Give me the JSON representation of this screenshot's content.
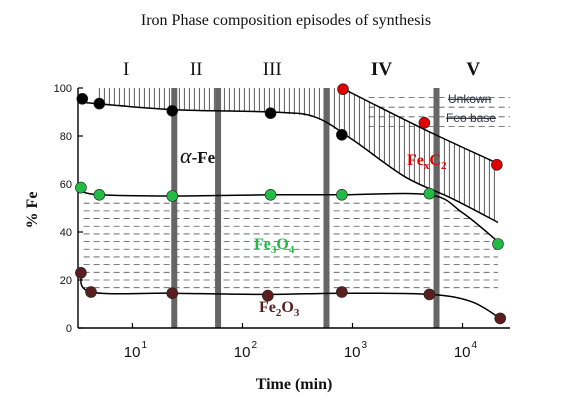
{
  "chart_data": {
    "type": "scatter",
    "title": "Iron Phase composition episodes of synthesis",
    "xlabel": "Time (min)",
    "ylabel": "% Fe",
    "x_scale": "log",
    "xlim": [
      3.2,
      27000
    ],
    "ylim": [
      0,
      100
    ],
    "x_ticks": [
      {
        "value": 10,
        "label": "10",
        "exp": "1"
      },
      {
        "value": 100,
        "label": "10",
        "exp": "2"
      },
      {
        "value": 1000,
        "label": "10",
        "exp": "3"
      },
      {
        "value": 10000,
        "label": "10",
        "exp": "4"
      }
    ],
    "y_ticks": [
      0,
      20,
      40,
      60,
      80,
      100
    ],
    "episodes": [
      {
        "label": "I",
        "start": 3.2,
        "end": 24
      },
      {
        "label": "II",
        "start": 24,
        "end": 60
      },
      {
        "label": "III",
        "start": 60,
        "end": 580
      },
      {
        "label": "IV",
        "start": 580,
        "end": 5800
      },
      {
        "label": "V",
        "start": 5800,
        "end": 27000
      }
    ],
    "dividers": [
      24,
      60,
      580,
      5800
    ],
    "series": [
      {
        "key": "alpha",
        "color": "#000000",
        "points": [
          [
            3.5,
            95.5
          ],
          [
            5,
            93.5
          ],
          [
            23,
            90.5
          ],
          [
            180,
            89.5
          ],
          [
            800,
            80.5
          ]
        ],
        "curve": [
          [
            3.5,
            94
          ],
          [
            23,
            91
          ],
          [
            180,
            90
          ],
          [
            450,
            88
          ],
          [
            1000,
            78.5
          ],
          [
            3000,
            63
          ],
          [
            8000,
            54
          ],
          [
            21000,
            44
          ]
        ]
      },
      {
        "key": "fec",
        "color": "#e00000",
        "points": [
          [
            820,
            99.5
          ],
          [
            4500,
            85.5
          ],
          [
            20500,
            68
          ]
        ],
        "curve": [
          [
            800,
            100
          ],
          [
            2500,
            88.5
          ],
          [
            6000,
            80
          ],
          [
            21000,
            68.5
          ]
        ]
      },
      {
        "key": "fe3o4",
        "color": "#22bb44",
        "points": [
          [
            3.4,
            58.5
          ],
          [
            5,
            55.5
          ],
          [
            23,
            55
          ],
          [
            180,
            55.5
          ],
          [
            800,
            55.5
          ],
          [
            5000,
            56
          ],
          [
            21000,
            35
          ]
        ],
        "curve": [
          [
            3.4,
            57
          ],
          [
            5,
            55.5
          ],
          [
            23,
            55
          ],
          [
            180,
            55.5
          ],
          [
            800,
            55.5
          ],
          [
            5000,
            55.5
          ],
          [
            10000,
            48
          ],
          [
            21000,
            36
          ]
        ]
      },
      {
        "key": "fe2o3",
        "color": "#5a1e1e",
        "points": [
          [
            3.4,
            23
          ],
          [
            4.2,
            15
          ],
          [
            23,
            14.5
          ],
          [
            170,
            13.5
          ],
          [
            800,
            15
          ],
          [
            5000,
            14
          ],
          [
            22000,
            4
          ]
        ],
        "curve": [
          [
            3.4,
            23
          ],
          [
            4.2,
            15
          ],
          [
            23,
            14.5
          ],
          [
            170,
            14
          ],
          [
            800,
            14.5
          ],
          [
            5000,
            14
          ],
          [
            12000,
            11
          ],
          [
            22000,
            4
          ]
        ]
      }
    ],
    "annotations": {
      "alpha_symbol": "α",
      "alpha_text": "-Fe",
      "fe3o4": {
        "base": "Fe",
        "s1": "3",
        "mid": "O",
        "s2": "4",
        "color": "#22bb44"
      },
      "fe2o3": {
        "base": "Fe",
        "s1": "2",
        "mid": "O",
        "s2": "3",
        "color": "#5a1e1e"
      },
      "fec": {
        "base": "Fe",
        "s1": "x",
        "mid": "C",
        "s2": "2",
        "color": "#e00000"
      }
    },
    "legend": {
      "placement": "top-right",
      "items": [
        "Unkown",
        "Feo base"
      ]
    },
    "hatching": "vertical lines between α-Fe curve and 100%; horizontal dashed lines below Fe3O4"
  }
}
